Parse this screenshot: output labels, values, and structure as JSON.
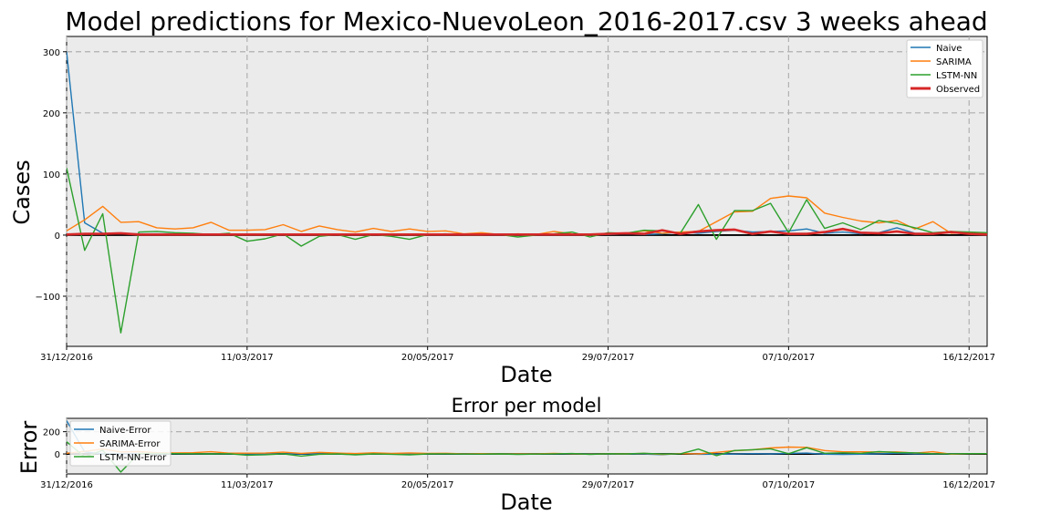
{
  "colors": {
    "naive": "#1f77b4",
    "sarima": "#ff7f0e",
    "lstm": "#2ca02c",
    "observed": "#d62728",
    "plot_bg": "#ebebeb",
    "grid": "#b0b0b0"
  },
  "chart_data": [
    {
      "type": "line",
      "title": "Model predictions for Mexico-NuevoLeon_2016-2017.csv 3 weeks ahead",
      "xlabel": "Date",
      "ylabel": "Cases",
      "x_ticks": [
        "31/12/2016",
        "11/03/2017",
        "20/05/2017",
        "29/07/2017",
        "07/10/2017",
        "16/12/2017"
      ],
      "xlim_weeks": [
        0,
        51
      ],
      "y_ticks": [
        "−100",
        "0",
        "100",
        "200",
        "300"
      ],
      "y_tick_values": [
        -100,
        0,
        100,
        200,
        300
      ],
      "ylim": [
        -182,
        325
      ],
      "grid": true,
      "legend_position": "upper right",
      "series": [
        {
          "name": "Naive",
          "key": "naive",
          "values": [
            300,
            20,
            3,
            2,
            2,
            2,
            2,
            1,
            1,
            1,
            1,
            1,
            1,
            1,
            1,
            1,
            1,
            1,
            1,
            1,
            1,
            1,
            1,
            1,
            1,
            1,
            1,
            1,
            1,
            1,
            1,
            2,
            1,
            2,
            5,
            3,
            6,
            8,
            5,
            6,
            7,
            10,
            3,
            5,
            2,
            4,
            12,
            3,
            2,
            5,
            3,
            3
          ]
        },
        {
          "name": "SARIMA",
          "key": "sarima",
          "values": [
            7,
            25,
            47,
            21,
            22,
            12,
            10,
            12,
            21,
            8,
            8,
            9,
            17,
            6,
            15,
            9,
            5,
            11,
            6,
            10,
            6,
            7,
            2,
            4,
            1,
            2,
            1,
            6,
            2,
            0,
            3,
            3,
            7,
            3,
            5,
            6,
            22,
            38,
            39,
            60,
            64,
            61,
            36,
            29,
            23,
            20,
            24,
            10,
            22,
            3,
            4,
            3
          ]
        },
        {
          "name": "LSTM-NN",
          "key": "lstm",
          "values": [
            110,
            -25,
            35,
            -160,
            5,
            6,
            4,
            3,
            1,
            3,
            -10,
            -6,
            2,
            -18,
            -2,
            1,
            -7,
            1,
            -2,
            -7,
            1,
            2,
            0,
            0,
            1,
            -3,
            0,
            2,
            5,
            -3,
            4,
            3,
            8,
            7,
            3,
            50,
            -7,
            40,
            40,
            52,
            4,
            58,
            11,
            20,
            9,
            24,
            19,
            12,
            4,
            6,
            5,
            4
          ]
        },
        {
          "name": "Observed",
          "key": "observed",
          "values": [
            1,
            2,
            2,
            3,
            1,
            1,
            1,
            1,
            1,
            1,
            1,
            1,
            1,
            1,
            1,
            1,
            1,
            1,
            1,
            1,
            1,
            1,
            1,
            1,
            1,
            1,
            1,
            1,
            1,
            1,
            2,
            3,
            2,
            8,
            2,
            6,
            8,
            9,
            2,
            6,
            2,
            2,
            5,
            10,
            4,
            3,
            6,
            2,
            2,
            5,
            2,
            1
          ]
        }
      ]
    },
    {
      "type": "line",
      "title": "Error per model",
      "xlabel": "Date",
      "ylabel": "Error",
      "x_ticks": [
        "31/12/2016",
        "11/03/2017",
        "20/05/2017",
        "29/07/2017",
        "07/10/2017",
        "16/12/2017"
      ],
      "xlim_weeks": [
        0,
        51
      ],
      "y_ticks": [
        "0",
        "200"
      ],
      "y_tick_values": [
        0,
        200
      ],
      "ylim": [
        -180,
        320
      ],
      "grid": true,
      "legend_position": "upper left",
      "series": [
        {
          "name": "Naive-Error",
          "key": "naive",
          "values": [
            299,
            18,
            1,
            -1,
            1,
            1,
            1,
            0,
            0,
            0,
            0,
            0,
            0,
            0,
            0,
            0,
            0,
            0,
            0,
            0,
            0,
            0,
            0,
            0,
            0,
            0,
            0,
            0,
            0,
            0,
            -1,
            -1,
            -1,
            -6,
            3,
            -3,
            -2,
            -1,
            3,
            0,
            5,
            8,
            -2,
            -5,
            -2,
            1,
            6,
            1,
            0,
            0,
            1,
            2
          ]
        },
        {
          "name": "SARIMA-Error",
          "key": "sarima",
          "values": [
            6,
            23,
            45,
            18,
            21,
            11,
            9,
            11,
            20,
            7,
            7,
            8,
            16,
            5,
            14,
            8,
            4,
            10,
            5,
            9,
            5,
            6,
            1,
            3,
            0,
            1,
            0,
            5,
            1,
            -1,
            1,
            0,
            5,
            -5,
            3,
            0,
            14,
            29,
            37,
            54,
            62,
            59,
            31,
            19,
            19,
            17,
            18,
            8,
            20,
            -2,
            2,
            2
          ]
        },
        {
          "name": "LSTM-NN-Error",
          "key": "lstm",
          "values": [
            109,
            -27,
            33,
            -163,
            4,
            5,
            3,
            2,
            0,
            2,
            -11,
            -7,
            1,
            -19,
            -3,
            0,
            -8,
            0,
            -3,
            -8,
            0,
            1,
            -1,
            -1,
            0,
            -4,
            -1,
            1,
            4,
            -4,
            2,
            0,
            6,
            -1,
            1,
            44,
            -15,
            31,
            38,
            46,
            2,
            56,
            6,
            10,
            5,
            21,
            13,
            10,
            2,
            1,
            3,
            3
          ]
        }
      ]
    }
  ]
}
